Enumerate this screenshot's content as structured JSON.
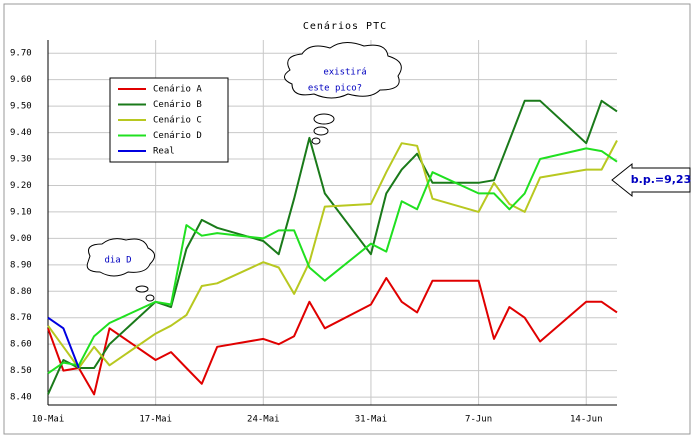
{
  "chart_data": {
    "type": "line",
    "title": "Cenários PTC",
    "x": [
      0,
      1,
      2,
      3,
      4,
      7,
      8,
      9,
      10,
      11,
      14,
      15,
      16,
      17,
      18,
      21,
      22,
      23,
      24,
      25,
      28,
      29,
      30,
      31,
      32,
      35,
      36,
      37
    ],
    "xlim": [
      0,
      37
    ],
    "xticks": [
      {
        "value": 0,
        "label": "10-Mai"
      },
      {
        "value": 7,
        "label": "17-Mai"
      },
      {
        "value": 14,
        "label": "24-Mai"
      },
      {
        "value": 21,
        "label": "31-Mai"
      },
      {
        "value": 28,
        "label": "7-Jun"
      },
      {
        "value": 35,
        "label": "14-Jun"
      }
    ],
    "ylim": [
      8.37,
      9.75
    ],
    "yticks": [
      {
        "value": 8.4,
        "label": "8.40"
      },
      {
        "value": 8.5,
        "label": "8.50"
      },
      {
        "value": 8.6,
        "label": "8.60"
      },
      {
        "value": 8.7,
        "label": "8.70"
      },
      {
        "value": 8.8,
        "label": "8.80"
      },
      {
        "value": 8.9,
        "label": "8.90"
      },
      {
        "value": 9.0,
        "label": "9.00"
      },
      {
        "value": 9.1,
        "label": "9.10"
      },
      {
        "value": 9.2,
        "label": "9.20"
      },
      {
        "value": 9.3,
        "label": "9.30"
      },
      {
        "value": 9.4,
        "label": "9.40"
      },
      {
        "value": 9.5,
        "label": "9.50"
      },
      {
        "value": 9.6,
        "label": "9.60"
      },
      {
        "value": 9.7,
        "label": "9.70"
      }
    ],
    "grid": true,
    "legend": "upper left",
    "series": [
      {
        "name": "Cenário A",
        "color": "#e00000",
        "values": [
          8.66,
          8.5,
          8.51,
          8.41,
          8.66,
          8.54,
          8.57,
          8.51,
          8.45,
          8.59,
          8.62,
          8.6,
          8.63,
          8.76,
          8.66,
          8.75,
          8.85,
          8.76,
          8.72,
          8.84,
          8.84,
          8.62,
          8.74,
          8.7,
          8.61,
          8.76,
          8.76,
          8.72
        ]
      },
      {
        "name": "Cenário B",
        "color": "#1a7a1a",
        "values": [
          8.41,
          8.54,
          8.51,
          8.51,
          8.6,
          8.76,
          8.74,
          8.96,
          9.07,
          9.04,
          8.99,
          8.94,
          9.15,
          9.38,
          9.17,
          8.94,
          9.17,
          9.26,
          9.32,
          9.21,
          9.21,
          9.22,
          9.37,
          9.52,
          9.52,
          9.36,
          9.52,
          9.48
        ]
      },
      {
        "name": "Cenário C",
        "color": "#b8c820",
        "values": [
          8.67,
          8.59,
          8.51,
          8.59,
          8.52,
          8.64,
          8.67,
          8.71,
          8.82,
          8.83,
          8.91,
          8.89,
          8.79,
          8.91,
          9.12,
          9.13,
          9.25,
          9.36,
          9.35,
          9.15,
          9.1,
          9.21,
          9.13,
          9.1,
          9.23,
          9.26,
          9.26,
          9.37
        ]
      },
      {
        "name": "Cenário D",
        "color": "#20e020",
        "values": [
          8.49,
          8.53,
          8.52,
          8.63,
          8.68,
          8.76,
          8.75,
          9.05,
          9.01,
          9.02,
          9.0,
          9.03,
          9.03,
          8.89,
          8.84,
          8.98,
          8.95,
          9.14,
          9.11,
          9.25,
          9.17,
          9.17,
          9.11,
          9.17,
          9.3,
          9.34,
          9.33,
          9.29
        ]
      },
      {
        "name": "Real",
        "color": "#0000e0",
        "values": [
          8.7,
          8.66,
          8.51,
          null,
          null,
          null,
          null,
          null,
          null,
          null,
          null,
          null,
          null,
          null,
          null,
          null,
          null,
          null,
          null,
          null,
          null,
          null,
          null,
          null,
          null,
          null,
          null,
          null
        ]
      }
    ],
    "annotations": [
      "existirá",
      "este pico?",
      "dia D",
      "b.p.=9,23"
    ]
  }
}
